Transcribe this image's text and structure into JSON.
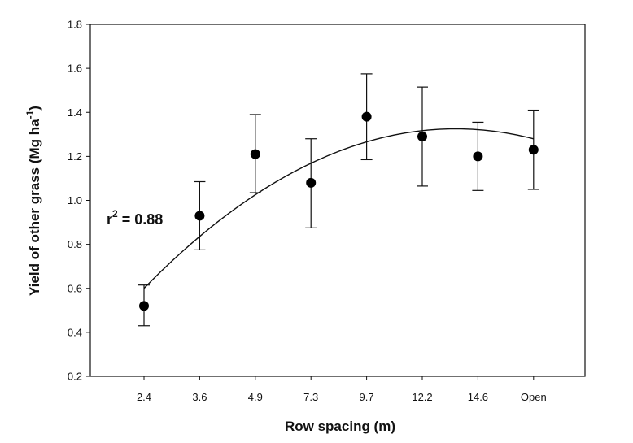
{
  "chart_data": {
    "type": "scatter",
    "title": "",
    "xlabel": "Row spacing (m)",
    "ylabel": {
      "text": "Yield of other grass (Mg ha",
      "superscript": "-1",
      "suffix": ")"
    },
    "categories": [
      "2.4",
      "3.6",
      "4.9",
      "7.3",
      "9.7",
      "12.2",
      "14.6",
      "Open"
    ],
    "ylim": [
      0.2,
      1.8
    ],
    "yticks": [
      "0.2",
      "0.4",
      "0.6",
      "0.8",
      "1.0",
      "1.2",
      "1.4",
      "1.6",
      "1.8"
    ],
    "series": [
      {
        "name": "Yield of other grass",
        "values": [
          0.52,
          0.93,
          1.21,
          1.08,
          1.38,
          1.29,
          1.2,
          1.23
        ],
        "error_low": [
          0.43,
          0.775,
          1.035,
          0.875,
          1.185,
          1.065,
          1.045,
          1.05
        ],
        "error_high": [
          0.615,
          1.085,
          1.39,
          1.28,
          1.575,
          1.515,
          1.355,
          1.41
        ]
      }
    ],
    "fit": {
      "type": "quadratic",
      "vertex_index": 5.6,
      "vertex_value": 1.325,
      "start_value": 0.6,
      "index_range": [
        0,
        7
      ]
    },
    "annotation": {
      "text": "r",
      "superscript": "2",
      "suffix": " = 0.88"
    },
    "grid": false
  }
}
